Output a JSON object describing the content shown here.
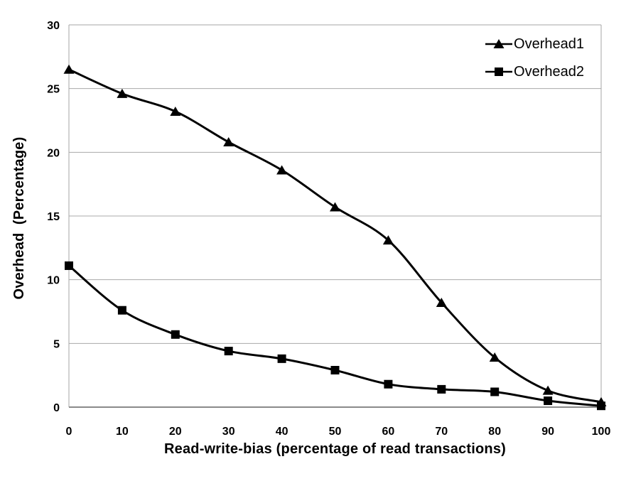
{
  "chart_data": {
    "type": "line",
    "title": "",
    "xlabel": "Read-write-bias (percentage of read transactions)",
    "ylabel": "Overhead  (Percentage)",
    "x": [
      0,
      10,
      20,
      30,
      40,
      50,
      60,
      70,
      80,
      90,
      100
    ],
    "xlim": [
      0,
      100
    ],
    "ylim": [
      0,
      30
    ],
    "yticks": [
      0,
      5,
      10,
      15,
      20,
      25,
      30
    ],
    "xticks": [
      0,
      10,
      20,
      30,
      40,
      50,
      60,
      70,
      80,
      90,
      100
    ],
    "grid": "horizontal-only",
    "legend_position": "top-right-inside",
    "series": [
      {
        "name": "Overhead1",
        "marker": "triangle",
        "color": "#000000",
        "values": [
          26.5,
          24.6,
          23.2,
          20.8,
          18.6,
          15.7,
          13.1,
          8.2,
          3.9,
          1.3,
          0.4
        ]
      },
      {
        "name": "Overhead2",
        "marker": "square",
        "color": "#000000",
        "values": [
          11.1,
          7.6,
          5.7,
          4.4,
          3.8,
          2.9,
          1.8,
          1.4,
          1.2,
          0.5,
          0.1
        ]
      }
    ],
    "colors": {
      "background": "#ffffff",
      "gridline": "#a8a8a8",
      "plot_border": "#a6a6a6",
      "x_axis_line": "#8a8a8a",
      "text": "#000000",
      "series_line": "#000000"
    }
  }
}
